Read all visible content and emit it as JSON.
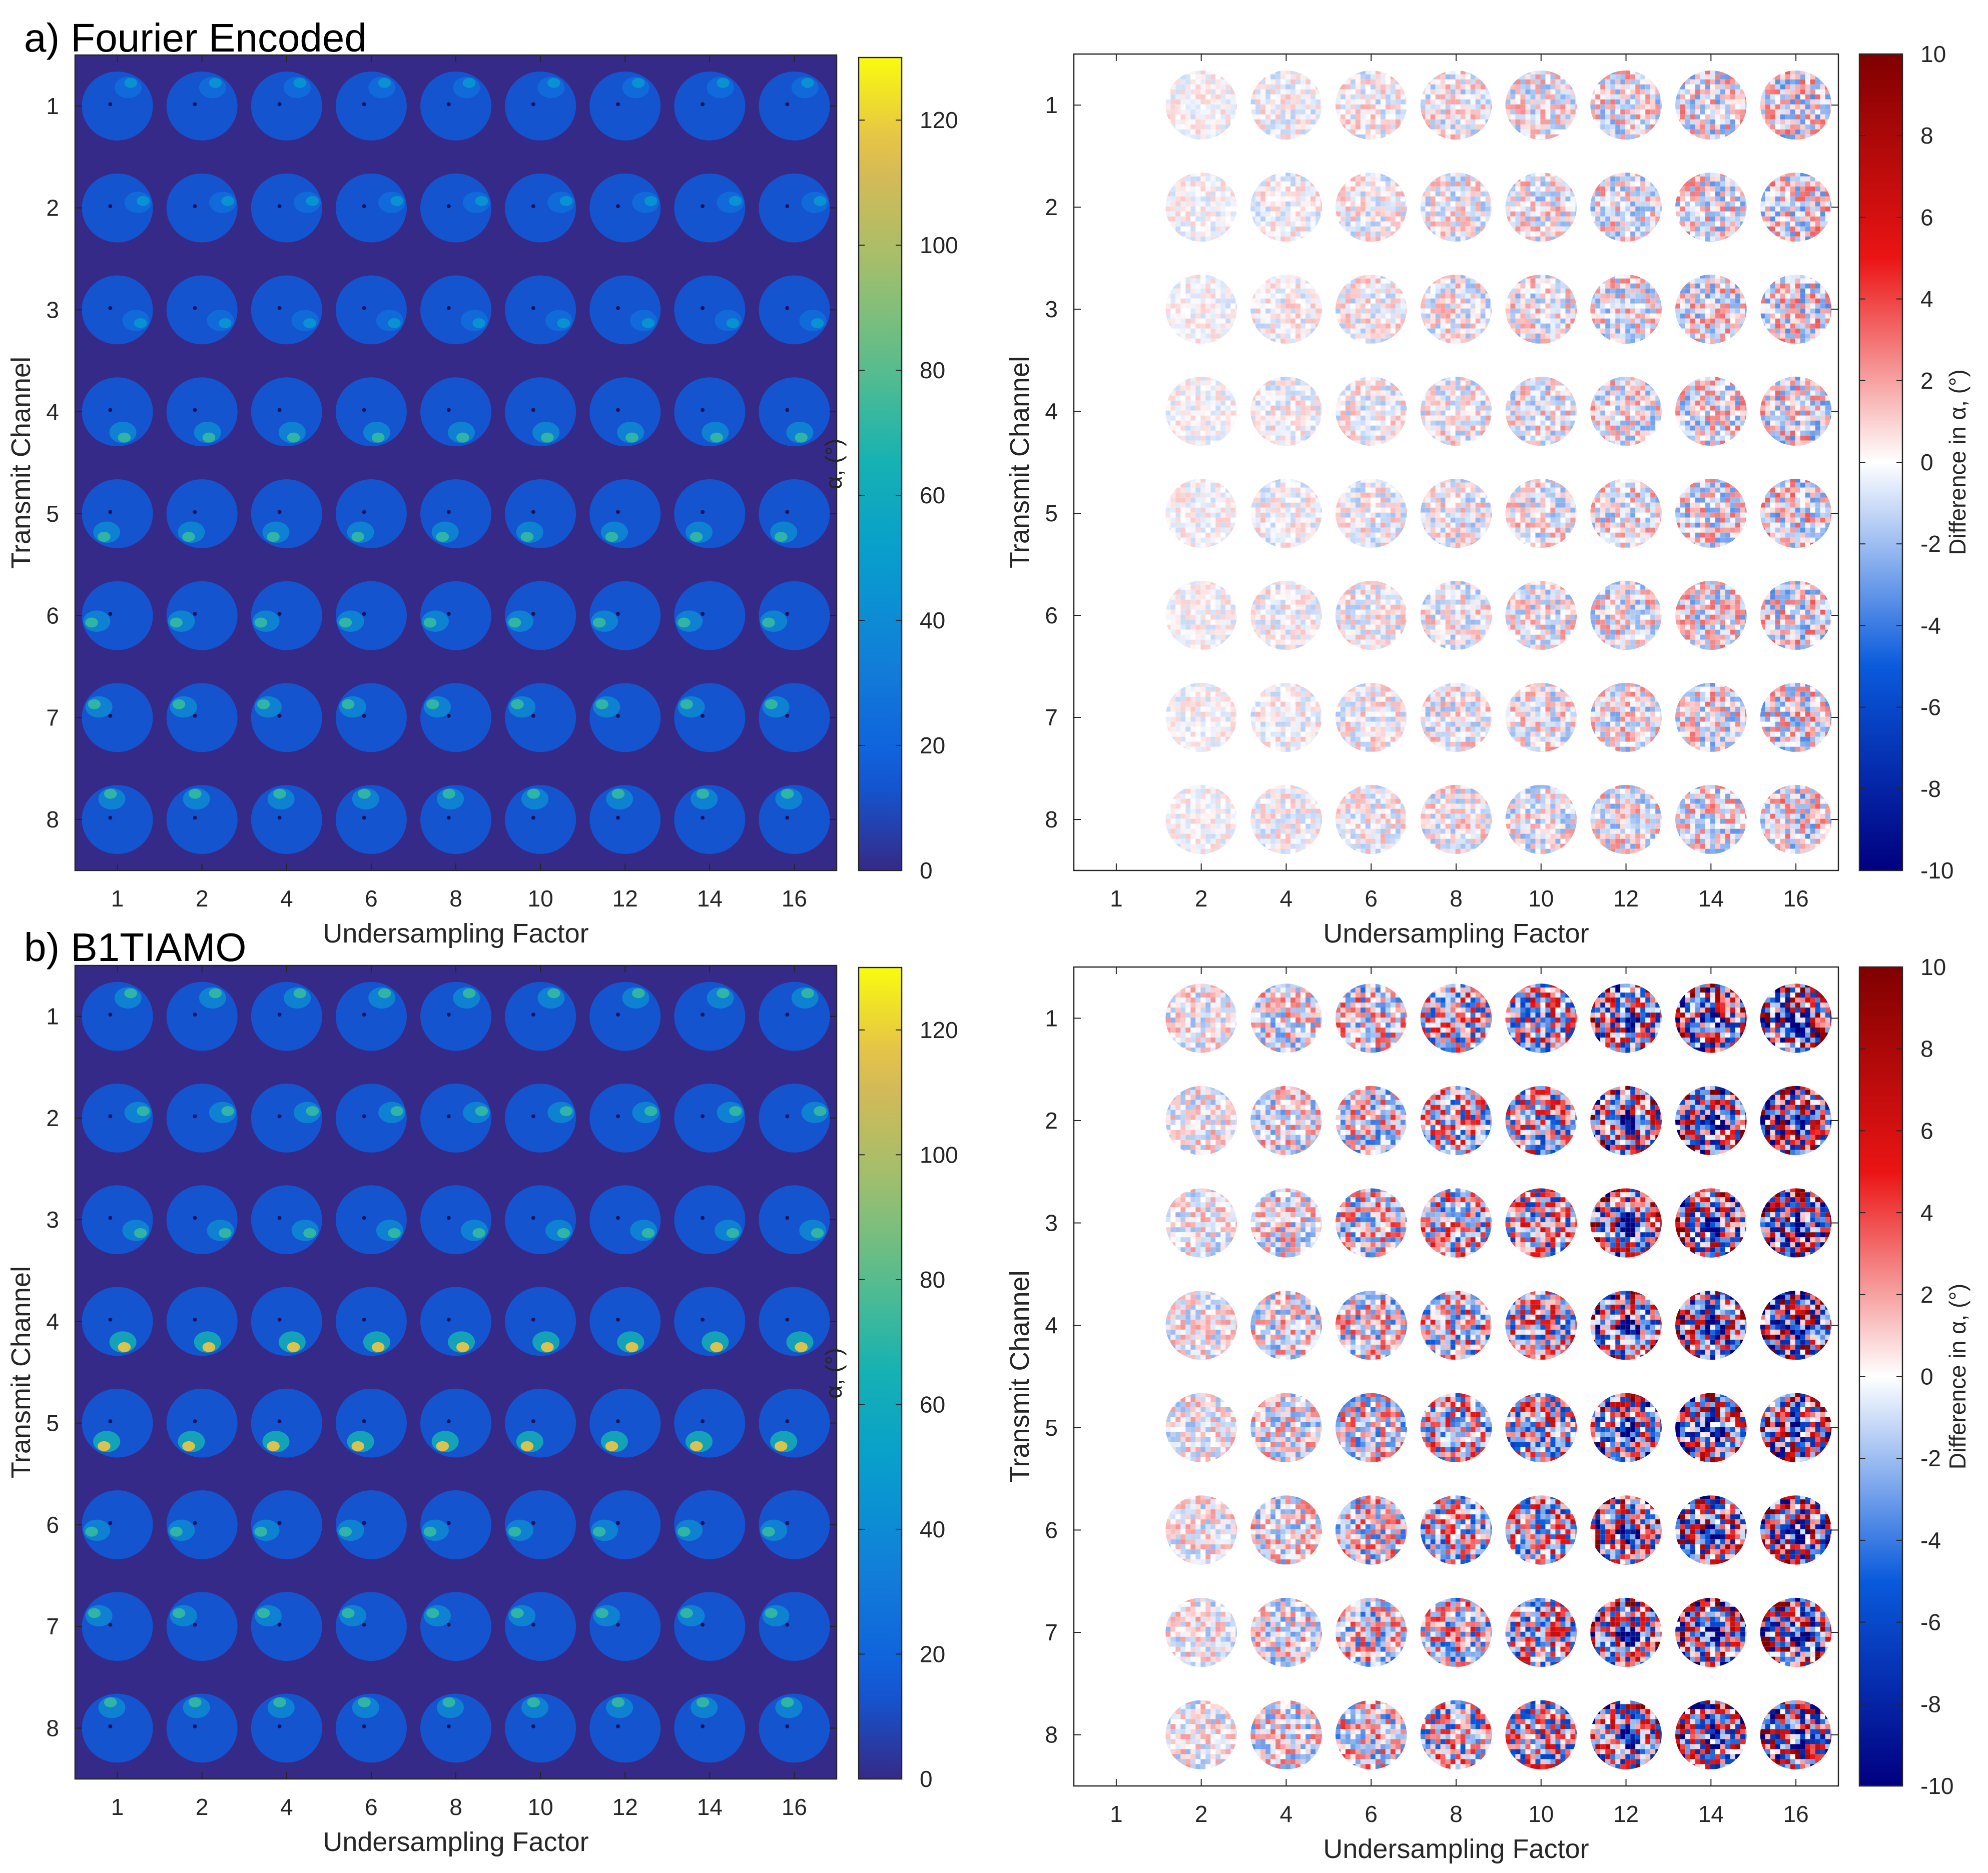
{
  "sections": [
    {
      "id": "a",
      "title": "a) Fourier Encoded",
      "method": "fourier"
    },
    {
      "id": "b",
      "title": "b) B1TIAMO",
      "method": "b1tiamo"
    }
  ],
  "chart_data": [
    {
      "type": "heatmap",
      "name": "a-left",
      "method": "fourier",
      "map": "flip-angle",
      "xlabel": "Undersampling Factor",
      "ylabel": "Transmit Channel",
      "categories": [
        "1",
        "2",
        "4",
        "6",
        "8",
        "10",
        "12",
        "14",
        "16"
      ],
      "rows": [
        "1",
        "2",
        "3",
        "4",
        "5",
        "6",
        "7",
        "8"
      ],
      "colorbar_label": "α, (°)",
      "clim": [
        0,
        130
      ],
      "colorbar_ticks": [
        0,
        20,
        40,
        60,
        80,
        100,
        120
      ],
      "colormap": "parula"
    },
    {
      "type": "heatmap",
      "name": "a-right",
      "method": "fourier",
      "map": "difference",
      "xlabel": "Undersampling Factor",
      "ylabel": "Transmit Channel",
      "categories": [
        "1",
        "2",
        "4",
        "6",
        "8",
        "10",
        "12",
        "14",
        "16"
      ],
      "rows": [
        "1",
        "2",
        "3",
        "4",
        "5",
        "6",
        "7",
        "8"
      ],
      "colorbar_label": "Difference in α, (°)",
      "clim": [
        -10,
        10
      ],
      "colorbar_ticks": [
        -10,
        -8,
        -6,
        -4,
        -2,
        0,
        2,
        4,
        6,
        8,
        10
      ],
      "colormap": "red-white-blue"
    },
    {
      "type": "heatmap",
      "name": "b-left",
      "method": "b1tiamo",
      "map": "flip-angle",
      "xlabel": "Undersampling Factor",
      "ylabel": "Transmit Channel",
      "categories": [
        "1",
        "2",
        "4",
        "6",
        "8",
        "10",
        "12",
        "14",
        "16"
      ],
      "rows": [
        "1",
        "2",
        "3",
        "4",
        "5",
        "6",
        "7",
        "8"
      ],
      "colorbar_label": "α, (°)",
      "clim": [
        0,
        130
      ],
      "colorbar_ticks": [
        0,
        20,
        40,
        60,
        80,
        100,
        120
      ],
      "colormap": "parula"
    },
    {
      "type": "heatmap",
      "name": "b-right",
      "method": "b1tiamo",
      "map": "difference",
      "xlabel": "Undersampling Factor",
      "ylabel": "Transmit Channel",
      "categories": [
        "1",
        "2",
        "4",
        "6",
        "8",
        "10",
        "12",
        "14",
        "16"
      ],
      "rows": [
        "1",
        "2",
        "3",
        "4",
        "5",
        "6",
        "7",
        "8"
      ],
      "colorbar_label": "Difference in α, (°)",
      "clim": [
        -10,
        10
      ],
      "colorbar_ticks": [
        -10,
        -8,
        -6,
        -4,
        -2,
        0,
        2,
        4,
        6,
        8,
        10
      ],
      "colormap": "red-white-blue"
    }
  ],
  "colors": {
    "parula_low": "#352a87",
    "parula_mid": "#21a9a1",
    "parula_high": "#f9fb0e",
    "diff_neg": "#000080",
    "diff_zero": "#ffffff",
    "diff_pos": "#800000",
    "axis": "#262626"
  }
}
